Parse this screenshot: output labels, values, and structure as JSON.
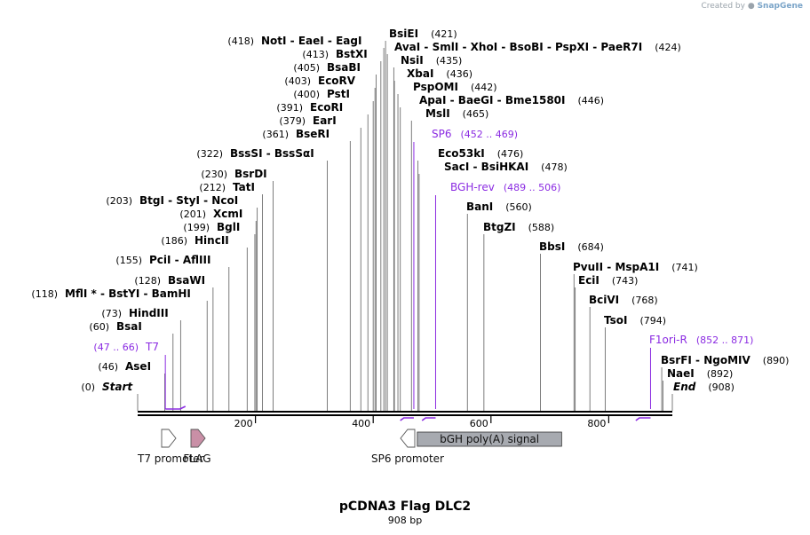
{
  "credit": {
    "prefix": "Created by",
    "brand": "SnapGene"
  },
  "title": "pCDNA3 Flag DLC2",
  "length_label": "908 bp",
  "sequence_length": 908,
  "colors": {
    "enzyme": "#000000",
    "primer": "#8b2be2",
    "feature_pink": "#c98fa6",
    "feature_gray": "#a7aab0",
    "backbone": "#000000"
  },
  "ruler": [
    "200",
    "400",
    "600",
    "800"
  ],
  "enzyme_groups": [
    {
      "cut": 418,
      "label": "(418)",
      "items": [
        {
          "name": "NotI",
          "italic": false
        },
        {
          "name": "EaeI",
          "italic": false
        },
        {
          "name": "EagI",
          "italic": false
        }
      ],
      "num_left": true
    },
    {
      "cut": 421,
      "label": "(421)",
      "items": [
        {
          "name": "BsiEI",
          "italic": false
        }
      ],
      "num_left": false
    },
    {
      "cut": 413,
      "label": "(413)",
      "items": [
        {
          "name": "BstXI",
          "italic": false
        }
      ],
      "num_left": true
    },
    {
      "cut": 424,
      "label": "(424)",
      "items": [
        {
          "name": "AvaI",
          "italic": false
        },
        {
          "name": "SmlI",
          "italic": false
        },
        {
          "name": "XhoI",
          "italic": false
        },
        {
          "name": "BsoBI",
          "italic": false
        },
        {
          "name": "PspXI",
          "italic": false
        },
        {
          "name": "PaeR7I",
          "italic": false
        }
      ],
      "num_left": false
    },
    {
      "cut": 405,
      "label": "(405)",
      "items": [
        {
          "name": "BsaBI",
          "italic": false
        }
      ],
      "num_left": true
    },
    {
      "cut": 435,
      "label": "(435)",
      "items": [
        {
          "name": "NsiI",
          "italic": false
        }
      ],
      "num_left": false
    },
    {
      "cut": 403,
      "label": "(403)",
      "items": [
        {
          "name": "EcoRV",
          "italic": false
        }
      ],
      "num_left": true
    },
    {
      "cut": 436,
      "label": "(436)",
      "items": [
        {
          "name": "XbaI",
          "italic": false
        }
      ],
      "num_left": false
    },
    {
      "cut": 400,
      "label": "(400)",
      "items": [
        {
          "name": "PstI",
          "italic": false
        }
      ],
      "num_left": true
    },
    {
      "cut": 442,
      "label": "(442)",
      "items": [
        {
          "name": "PspOMI",
          "italic": false
        }
      ],
      "num_left": false
    },
    {
      "cut": 391,
      "label": "(391)",
      "items": [
        {
          "name": "EcoRI",
          "italic": false
        }
      ],
      "num_left": true
    },
    {
      "cut": 446,
      "label": "(446)",
      "items": [
        {
          "name": "ApaI",
          "italic": false
        },
        {
          "name": "BaeGI",
          "italic": false
        },
        {
          "name": "Bme1580I",
          "italic": false
        }
      ],
      "num_left": false
    },
    {
      "cut": 379,
      "label": "(379)",
      "items": [
        {
          "name": "EarI",
          "italic": false
        }
      ],
      "num_left": true
    },
    {
      "cut": 465,
      "label": "(465)",
      "items": [
        {
          "name": "MslI",
          "italic": false
        }
      ],
      "num_left": false
    },
    {
      "cut": 361,
      "label": "(361)",
      "items": [
        {
          "name": "BseRI",
          "italic": false
        }
      ],
      "num_left": true
    },
    {
      "cut": 322,
      "label": "(322)",
      "items": [
        {
          "name": "BssSI",
          "italic": false
        },
        {
          "name": "BssSαI",
          "italic": false
        }
      ],
      "num_left": true
    },
    {
      "cut": 476,
      "label": "(476)",
      "items": [
        {
          "name": "Eco53kI",
          "italic": false
        }
      ],
      "num_left": false
    },
    {
      "cut": 478,
      "label": "(478)",
      "items": [
        {
          "name": "SacI",
          "italic": false
        },
        {
          "name": "BsiHKAI",
          "italic": false
        }
      ],
      "num_left": false
    },
    {
      "cut": 230,
      "label": "(230)",
      "items": [
        {
          "name": "BsrDI",
          "italic": false
        }
      ],
      "num_left": true
    },
    {
      "cut": 212,
      "label": "(212)",
      "items": [
        {
          "name": "TatI",
          "italic": false
        }
      ],
      "num_left": true
    },
    {
      "cut": 203,
      "label": "(203)",
      "items": [
        {
          "name": "BtgI",
          "italic": false
        },
        {
          "name": "StyI",
          "italic": false
        },
        {
          "name": "NcoI",
          "italic": false
        }
      ],
      "num_left": true
    },
    {
      "cut": 560,
      "label": "(560)",
      "items": [
        {
          "name": "BanI",
          "italic": false
        }
      ],
      "num_left": false
    },
    {
      "cut": 201,
      "label": "(201)",
      "items": [
        {
          "name": "XcmI",
          "italic": false
        }
      ],
      "num_left": true
    },
    {
      "cut": 199,
      "label": "(199)",
      "items": [
        {
          "name": "BglI",
          "italic": false
        }
      ],
      "num_left": true
    },
    {
      "cut": 588,
      "label": "(588)",
      "items": [
        {
          "name": "BtgZI",
          "italic": false
        }
      ],
      "num_left": false
    },
    {
      "cut": 186,
      "label": "(186)",
      "items": [
        {
          "name": "HincII",
          "italic": false
        }
      ],
      "num_left": true
    },
    {
      "cut": 684,
      "label": "(684)",
      "items": [
        {
          "name": "BbsI",
          "italic": false
        }
      ],
      "num_left": false
    },
    {
      "cut": 155,
      "label": "(155)",
      "items": [
        {
          "name": "PciI",
          "italic": false
        },
        {
          "name": "AflIII",
          "italic": false
        }
      ],
      "num_left": true
    },
    {
      "cut": 741,
      "label": "(741)",
      "items": [
        {
          "name": "PvuII",
          "italic": false
        },
        {
          "name": "MspA1I",
          "italic": false
        }
      ],
      "num_left": false
    },
    {
      "cut": 128,
      "label": "(128)",
      "items": [
        {
          "name": "BsaWI",
          "italic": false
        }
      ],
      "num_left": true
    },
    {
      "cut": 743,
      "label": "(743)",
      "items": [
        {
          "name": "EciI",
          "italic": false
        }
      ],
      "num_left": false
    },
    {
      "cut": 118,
      "label": "(118)",
      "items": [
        {
          "name": "MflI *",
          "italic": false
        },
        {
          "name": "BstYI",
          "italic": false
        },
        {
          "name": "BamHI",
          "italic": false
        }
      ],
      "num_left": true
    },
    {
      "cut": 768,
      "label": "(768)",
      "items": [
        {
          "name": "BciVI",
          "italic": false
        }
      ],
      "num_left": false
    },
    {
      "cut": 73,
      "label": "(73)",
      "items": [
        {
          "name": "HindIII",
          "italic": false
        }
      ],
      "num_left": true
    },
    {
      "cut": 794,
      "label": "(794)",
      "items": [
        {
          "name": "TsoI",
          "italic": false
        }
      ],
      "num_left": false
    },
    {
      "cut": 60,
      "label": "(60)",
      "items": [
        {
          "name": "BsaI",
          "italic": false
        }
      ],
      "num_left": true
    },
    {
      "cut": 890,
      "label": "(890)",
      "items": [
        {
          "name": "BsrFI",
          "italic": false
        },
        {
          "name": "NgoMIV",
          "italic": false
        }
      ],
      "num_left": false
    },
    {
      "cut": 46,
      "label": "(46)",
      "items": [
        {
          "name": "AseI",
          "italic": false
        }
      ],
      "num_left": true
    },
    {
      "cut": 892,
      "label": "(892)",
      "items": [
        {
          "name": "NaeI",
          "italic": false
        }
      ],
      "num_left": false
    },
    {
      "cut": 0,
      "label": "(0)",
      "items": [
        {
          "name": "Start",
          "italic": true
        }
      ],
      "num_left": true
    },
    {
      "cut": 908,
      "label": "(908)",
      "items": [
        {
          "name": "End",
          "italic": true
        }
      ],
      "num_left": false
    }
  ],
  "primers": [
    {
      "name": "SP6",
      "range": "(452 .. 469)",
      "start": 452,
      "end": 469,
      "direction": "reverse",
      "num_left": false
    },
    {
      "name": "BGH-rev",
      "range": "(489 .. 506)",
      "start": 489,
      "end": 506,
      "direction": "reverse",
      "num_left": false
    },
    {
      "name": "T7",
      "range": "(47 .. 66)",
      "start": 47,
      "end": 66,
      "direction": "forward",
      "num_left": true
    },
    {
      "name": "F1ori-R",
      "range": "(852 .. 871)",
      "start": 852,
      "end": 871,
      "direction": "reverse",
      "num_left": false
    }
  ],
  "features": [
    {
      "name": "T7 promoter",
      "start": 47,
      "end": 65,
      "shape": "arrow-right",
      "color": "#ffffff"
    },
    {
      "name": "FLAG",
      "start": 94,
      "end": 117,
      "shape": "arrow-right",
      "color": "#c98fa6"
    },
    {
      "name": "SP6 promoter",
      "start": 452,
      "end": 470,
      "shape": "arrow-left",
      "color": "#ffffff"
    },
    {
      "name": "bGH poly(A) signal",
      "start": 496,
      "end": 720,
      "shape": "box",
      "color": "#a7aab0"
    }
  ]
}
